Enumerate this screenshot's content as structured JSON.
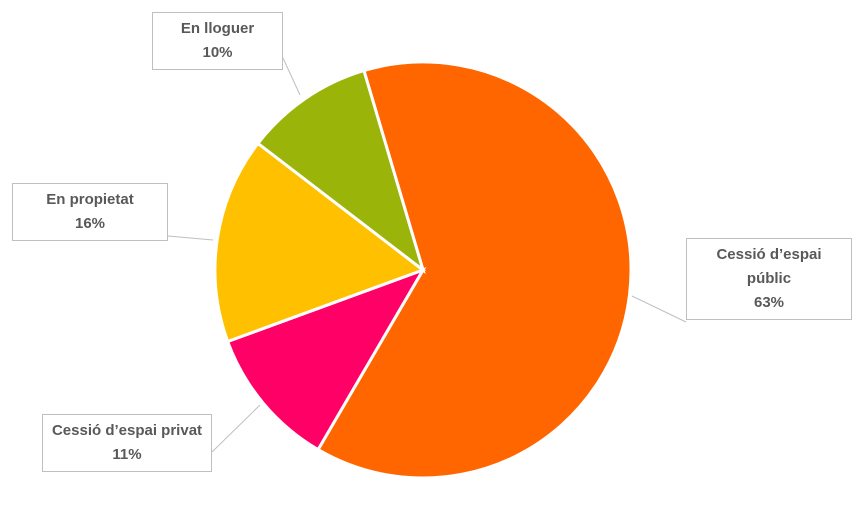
{
  "chart_data": {
    "type": "pie",
    "categories": [
      "Cessió d’espai públic",
      "Cessió d’espai privat",
      "En propietat",
      "En lloguer"
    ],
    "values": [
      63,
      11,
      16,
      10
    ],
    "value_labels": [
      "63%",
      "11%",
      "16%",
      "10%"
    ],
    "colors": [
      "#ff6600",
      "#ff0066",
      "#ffc000",
      "#9bb40a"
    ]
  }
}
